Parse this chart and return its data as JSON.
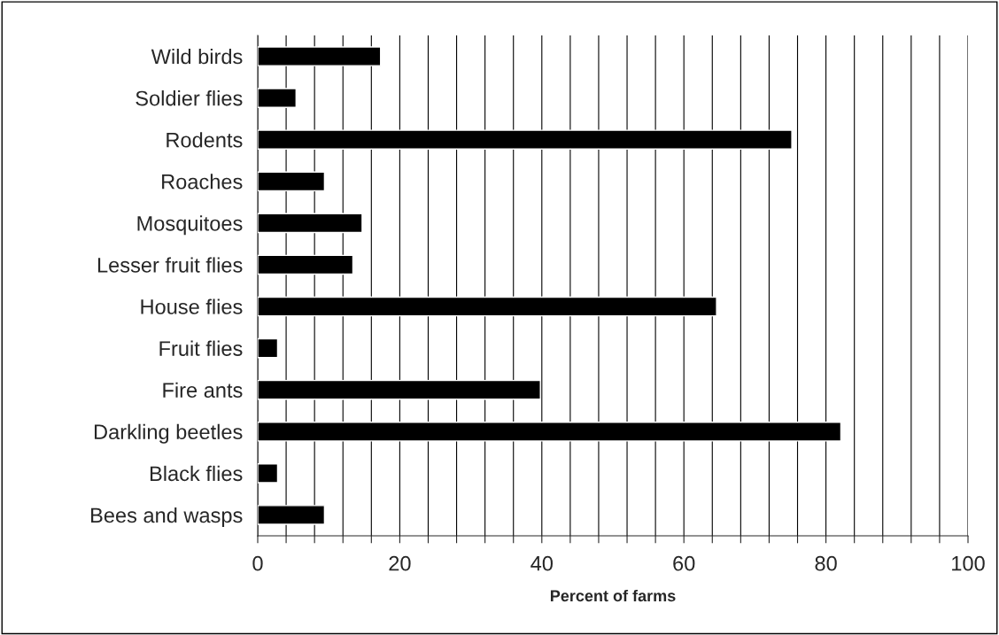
{
  "chart_data": {
    "type": "bar",
    "orientation": "horizontal",
    "xlabel": "Percent of farms",
    "categories": [
      "Wild birds",
      "Soldier flies",
      "Rodents",
      "Roaches",
      "Mosquitoes",
      "Lesser fruit flies",
      "House flies",
      "Fruit flies",
      "Fire ants",
      "Darkling beetles",
      "Black flies",
      "Bees and wasps"
    ],
    "values": [
      17.3,
      5.4,
      75.2,
      9.4,
      14.7,
      13.4,
      64.6,
      2.8,
      39.8,
      82.1,
      2.8,
      9.4
    ],
    "color": "#000000",
    "xlim": [
      0,
      100
    ],
    "xticks": [
      0,
      {
        "value": 4,
        "label": null
      },
      {
        "value": 8,
        "label": null
      },
      {
        "value": 12,
        "label": null
      },
      {
        "value": 16,
        "label": null
      },
      20,
      {
        "value": 24,
        "label": null
      },
      {
        "value": 28,
        "label": null
      },
      {
        "value": 32,
        "label": null
      },
      {
        "value": 36,
        "label": null
      },
      40,
      {
        "value": 44,
        "label": null
      },
      {
        "value": 48,
        "label": null
      },
      {
        "value": 52,
        "label": null
      },
      {
        "value": 56,
        "label": null
      },
      60,
      {
        "value": 64,
        "label": null
      },
      {
        "value": 68,
        "label": null
      },
      {
        "value": 72,
        "label": null
      },
      {
        "value": 76,
        "label": null
      },
      80,
      {
        "value": 84,
        "label": null
      },
      {
        "value": 88,
        "label": null
      },
      {
        "value": 92,
        "label": null
      },
      {
        "value": 96,
        "label": null
      },
      100
    ],
    "grid": "x"
  }
}
